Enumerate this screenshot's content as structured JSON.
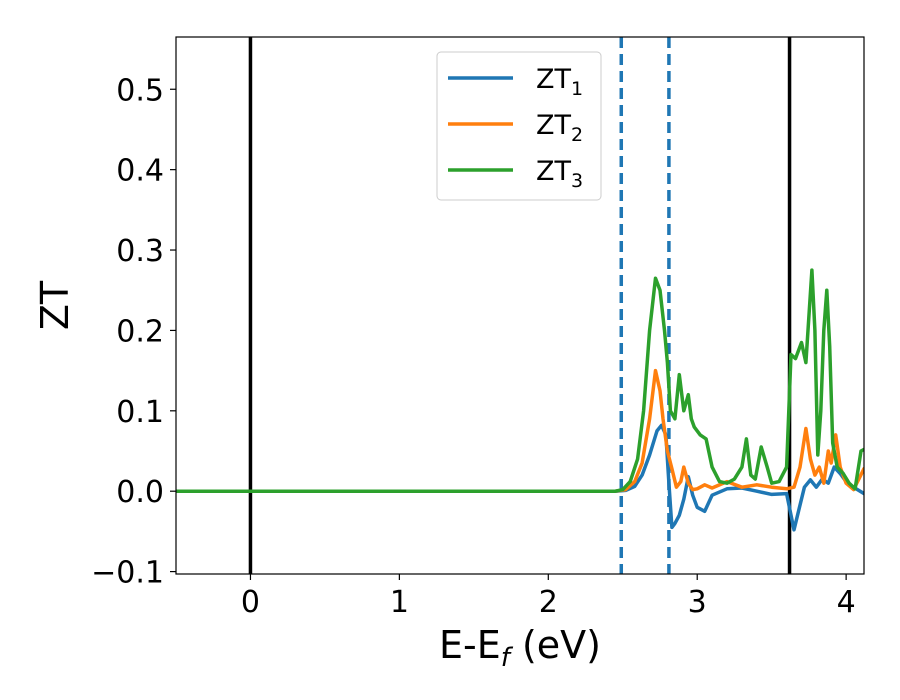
{
  "chart_data": {
    "type": "line",
    "xlabel": "E-E",
    "xlabel_sub": "f",
    "xlabel_unit": " (eV)",
    "ylabel": "ZT",
    "xlim": [
      -0.5,
      4.12
    ],
    "ylim": [
      -0.103,
      0.565
    ],
    "xticks": [
      0,
      1,
      2,
      3,
      4
    ],
    "xtick_labels": [
      "0",
      "1",
      "2",
      "3",
      "4"
    ],
    "yticks": [
      -0.1,
      0.0,
      0.1,
      0.2,
      0.3,
      0.4,
      0.5
    ],
    "ytick_labels": [
      "−0.1",
      "0.0",
      "0.1",
      "0.2",
      "0.3",
      "0.4",
      "0.5"
    ],
    "grid": false,
    "legend_position": "top-center",
    "vlines": [
      {
        "x": 0.0,
        "style": "solid",
        "color": "#000000"
      },
      {
        "x": 3.62,
        "style": "solid",
        "color": "#000000"
      },
      {
        "x": 2.49,
        "style": "dashed",
        "color": "#1f77b4"
      },
      {
        "x": 2.81,
        "style": "dashed",
        "color": "#1f77b4"
      }
    ],
    "series": [
      {
        "name": "ZT",
        "sub": "1",
        "color": "#1f77b4",
        "x": [
          -0.5,
          2.45,
          2.52,
          2.58,
          2.63,
          2.68,
          2.73,
          2.76,
          2.79,
          2.81,
          2.83,
          2.85,
          2.88,
          2.91,
          2.94,
          2.97,
          3.0,
          3.05,
          3.1,
          3.2,
          3.3,
          3.4,
          3.5,
          3.6,
          3.65,
          3.68,
          3.72,
          3.76,
          3.8,
          3.84,
          3.88,
          3.92,
          3.96,
          4.0,
          4.05,
          4.12
        ],
        "y": [
          0.0,
          0.0,
          0.001,
          0.006,
          0.02,
          0.045,
          0.075,
          0.082,
          0.07,
          0.01,
          -0.045,
          -0.04,
          -0.03,
          -0.01,
          0.018,
          -0.005,
          -0.02,
          -0.025,
          -0.005,
          0.003,
          0.004,
          0.0,
          -0.004,
          -0.003,
          -0.048,
          -0.025,
          0.005,
          0.014,
          0.005,
          0.015,
          0.01,
          0.03,
          0.022,
          0.012,
          0.005,
          -0.003
        ]
      },
      {
        "name": "ZT",
        "sub": "2",
        "color": "#ff7f0e",
        "x": [
          -0.5,
          2.45,
          2.52,
          2.58,
          2.63,
          2.68,
          2.72,
          2.75,
          2.77,
          2.8,
          2.83,
          2.86,
          2.89,
          2.91,
          2.94,
          2.97,
          3.0,
          3.05,
          3.1,
          3.2,
          3.3,
          3.4,
          3.5,
          3.6,
          3.65,
          3.69,
          3.73,
          3.76,
          3.79,
          3.82,
          3.85,
          3.88,
          3.9,
          3.93,
          3.96,
          4.0,
          4.05,
          4.12
        ],
        "y": [
          0.0,
          0.0,
          0.002,
          0.012,
          0.035,
          0.09,
          0.15,
          0.125,
          0.09,
          0.05,
          0.028,
          0.005,
          0.012,
          0.03,
          0.01,
          0.002,
          0.003,
          0.008,
          0.004,
          0.012,
          0.005,
          0.008,
          0.005,
          0.003,
          0.005,
          0.03,
          0.078,
          0.04,
          0.02,
          0.03,
          0.01,
          0.05,
          0.035,
          0.07,
          0.03,
          0.01,
          0.002,
          0.028
        ]
      },
      {
        "name": "ZT",
        "sub": "3",
        "color": "#2ca02c",
        "x": [
          -0.5,
          2.45,
          2.5,
          2.55,
          2.6,
          2.64,
          2.68,
          2.72,
          2.75,
          2.78,
          2.8,
          2.82,
          2.85,
          2.88,
          2.91,
          2.94,
          2.96,
          2.98,
          3.02,
          3.06,
          3.1,
          3.15,
          3.2,
          3.25,
          3.3,
          3.33,
          3.36,
          3.39,
          3.43,
          3.47,
          3.5,
          3.55,
          3.6,
          3.63,
          3.66,
          3.7,
          3.73,
          3.77,
          3.79,
          3.81,
          3.83,
          3.85,
          3.87,
          3.89,
          3.91,
          3.94,
          3.98,
          4.02,
          4.06,
          4.1,
          4.12
        ],
        "y": [
          0.0,
          0.0,
          0.002,
          0.012,
          0.04,
          0.1,
          0.2,
          0.265,
          0.25,
          0.2,
          0.16,
          0.1,
          0.09,
          0.145,
          0.1,
          0.12,
          0.09,
          0.08,
          0.07,
          0.065,
          0.03,
          0.012,
          0.01,
          0.015,
          0.03,
          0.065,
          0.02,
          0.015,
          0.055,
          0.03,
          0.01,
          0.012,
          0.03,
          0.17,
          0.165,
          0.185,
          0.16,
          0.275,
          0.2,
          0.045,
          0.1,
          0.2,
          0.25,
          0.18,
          0.06,
          0.03,
          0.022,
          0.01,
          0.003,
          0.05,
          0.052
        ]
      }
    ]
  }
}
